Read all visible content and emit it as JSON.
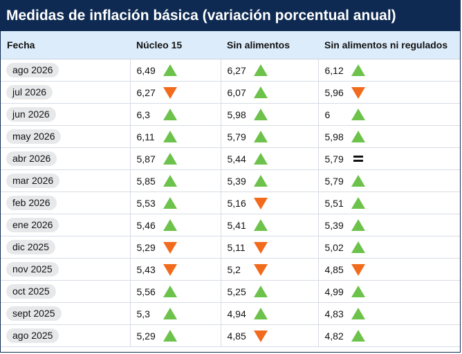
{
  "title": "Medidas de inflación básica (variación porcentual anual)",
  "colors": {
    "header_bg": "#0e2a52",
    "col_header_bg": "#dcecfb",
    "up": "#6cc24a",
    "down": "#f26b1d"
  },
  "columns": [
    "Fecha",
    "Núcleo 15",
    "Sin alimentos",
    "Sin alimentos ni regulados"
  ],
  "rows": [
    {
      "date": "ago 2026",
      "nucleo15": {
        "value": "6,49",
        "trend": "up"
      },
      "sin_alimentos": {
        "value": "6,27",
        "trend": "up"
      },
      "sin_alimentos_regulados": {
        "value": "6,12",
        "trend": "up"
      }
    },
    {
      "date": "jul 2026",
      "nucleo15": {
        "value": "6,27",
        "trend": "down"
      },
      "sin_alimentos": {
        "value": "6,07",
        "trend": "up"
      },
      "sin_alimentos_regulados": {
        "value": "5,96",
        "trend": "down"
      }
    },
    {
      "date": "jun 2026",
      "nucleo15": {
        "value": "6,3",
        "trend": "up"
      },
      "sin_alimentos": {
        "value": "5,98",
        "trend": "up"
      },
      "sin_alimentos_regulados": {
        "value": "6",
        "trend": "up"
      }
    },
    {
      "date": "may 2026",
      "nucleo15": {
        "value": "6,11",
        "trend": "up"
      },
      "sin_alimentos": {
        "value": "5,79",
        "trend": "up"
      },
      "sin_alimentos_regulados": {
        "value": "5,98",
        "trend": "up"
      }
    },
    {
      "date": "abr 2026",
      "nucleo15": {
        "value": "5,87",
        "trend": "up"
      },
      "sin_alimentos": {
        "value": "5,44",
        "trend": "up"
      },
      "sin_alimentos_regulados": {
        "value": "5,79",
        "trend": "equal"
      }
    },
    {
      "date": "mar 2026",
      "nucleo15": {
        "value": "5,85",
        "trend": "up"
      },
      "sin_alimentos": {
        "value": "5,39",
        "trend": "up"
      },
      "sin_alimentos_regulados": {
        "value": "5,79",
        "trend": "up"
      }
    },
    {
      "date": "feb 2026",
      "nucleo15": {
        "value": "5,53",
        "trend": "up"
      },
      "sin_alimentos": {
        "value": "5,16",
        "trend": "down"
      },
      "sin_alimentos_regulados": {
        "value": "5,51",
        "trend": "up"
      }
    },
    {
      "date": "ene 2026",
      "nucleo15": {
        "value": "5,46",
        "trend": "up"
      },
      "sin_alimentos": {
        "value": "5,41",
        "trend": "up"
      },
      "sin_alimentos_regulados": {
        "value": "5,39",
        "trend": "up"
      }
    },
    {
      "date": "dic 2025",
      "nucleo15": {
        "value": "5,29",
        "trend": "down"
      },
      "sin_alimentos": {
        "value": "5,11",
        "trend": "down"
      },
      "sin_alimentos_regulados": {
        "value": "5,02",
        "trend": "up"
      }
    },
    {
      "date": "nov 2025",
      "nucleo15": {
        "value": "5,43",
        "trend": "down"
      },
      "sin_alimentos": {
        "value": "5,2",
        "trend": "down"
      },
      "sin_alimentos_regulados": {
        "value": "4,85",
        "trend": "down"
      }
    },
    {
      "date": "oct 2025",
      "nucleo15": {
        "value": "5,56",
        "trend": "up"
      },
      "sin_alimentos": {
        "value": "5,25",
        "trend": "up"
      },
      "sin_alimentos_regulados": {
        "value": "4,99",
        "trend": "up"
      }
    },
    {
      "date": "sept 2025",
      "nucleo15": {
        "value": "5,3",
        "trend": "up"
      },
      "sin_alimentos": {
        "value": "4,94",
        "trend": "up"
      },
      "sin_alimentos_regulados": {
        "value": "4,83",
        "trend": "up"
      }
    },
    {
      "date": "ago 2025",
      "nucleo15": {
        "value": "5,29",
        "trend": "up"
      },
      "sin_alimentos": {
        "value": "4,85",
        "trend": "down"
      },
      "sin_alimentos_regulados": {
        "value": "4,82",
        "trend": "up"
      }
    }
  ]
}
